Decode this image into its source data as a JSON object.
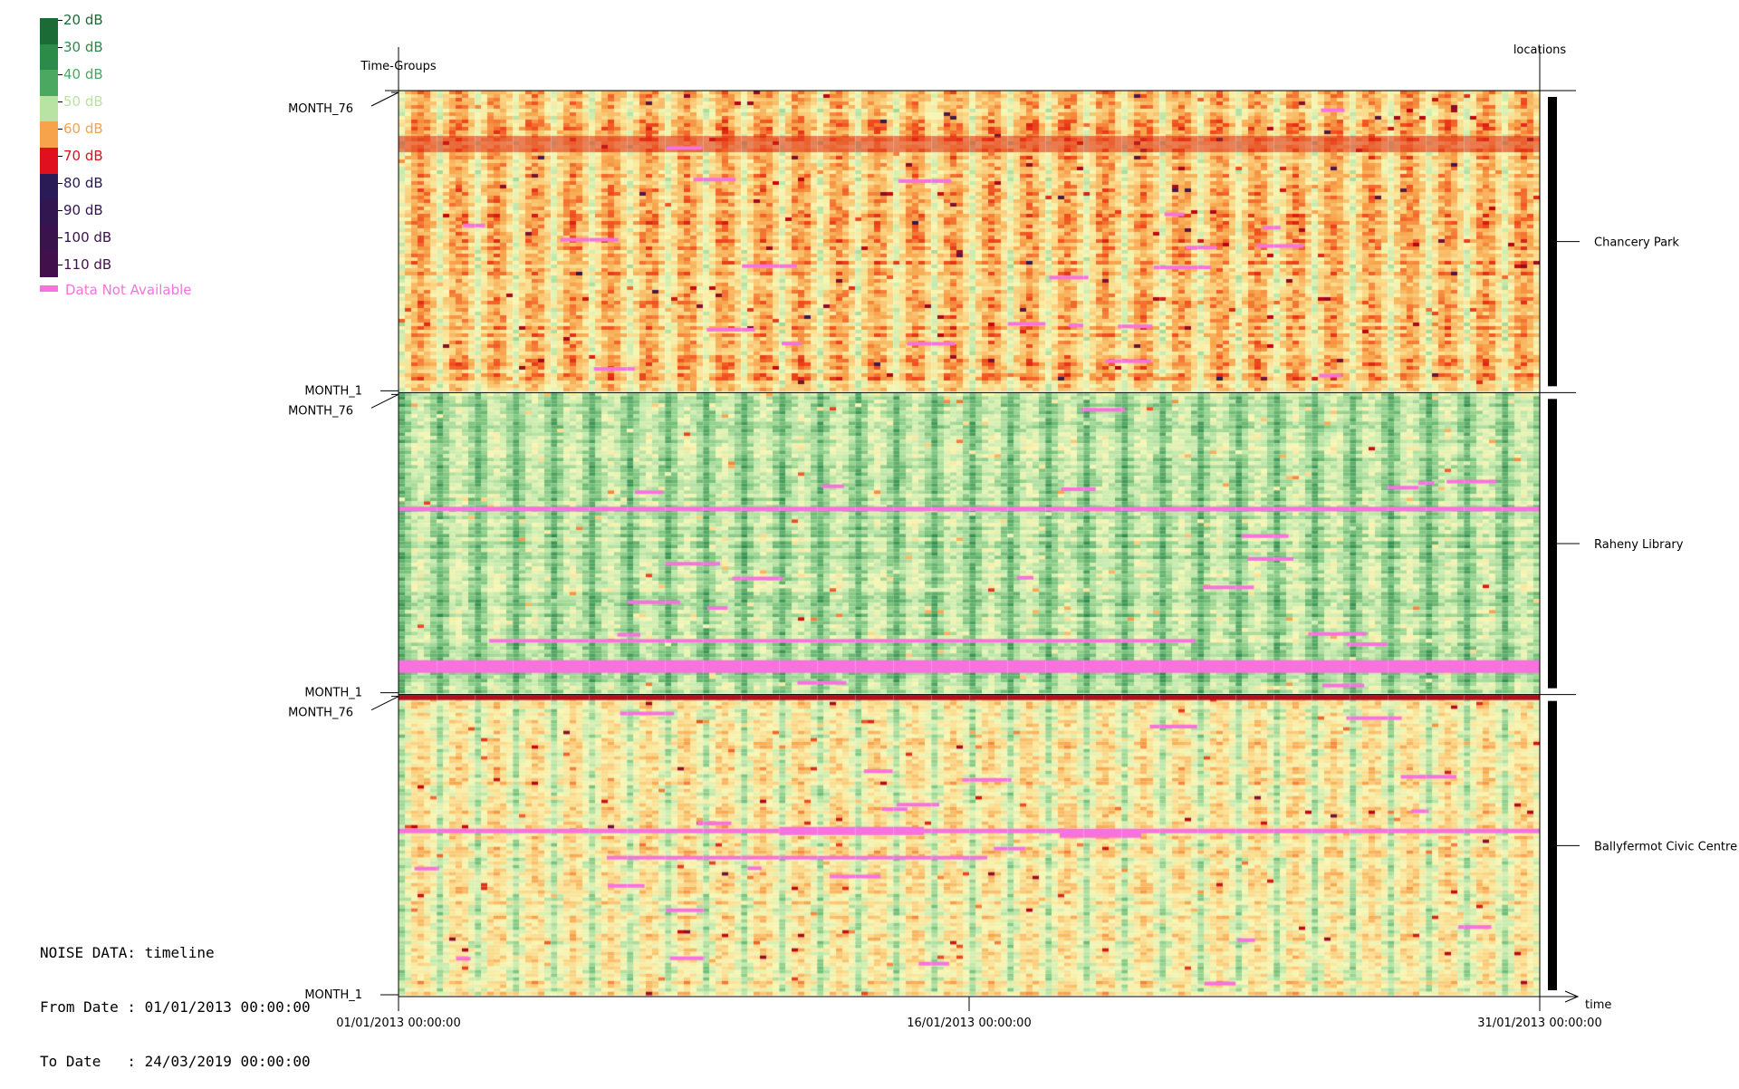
{
  "colors": {
    "na": "#f772de",
    "scale_stops": [
      "#2f1b52",
      "#42134a",
      "#c8050d",
      "#f04a1d",
      "#f7a34b",
      "#fbd888",
      "#f8f6b4",
      "#c9ecb0",
      "#7cc57e",
      "#2d8b4a",
      "#1a6b35"
    ]
  },
  "legend": {
    "items": [
      {
        "label": "20 dB",
        "color": "#1a6b35"
      },
      {
        "label": "30 dB",
        "color": "#2d8b4a"
      },
      {
        "label": "40 dB",
        "color": "#4aa860"
      },
      {
        "label": "50 dB",
        "color": "#b9e3a2"
      },
      {
        "label": "60 dB",
        "color": "#f7a34b"
      },
      {
        "label": "70 dB",
        "color": "#e0101e"
      },
      {
        "label": "80 dB",
        "color": "#2a1a55"
      },
      {
        "label": "90 dB",
        "color": "#321650"
      },
      {
        "label": "100 dB",
        "color": "#3a124c"
      },
      {
        "label": "110 dB",
        "color": "#42104a"
      }
    ],
    "na_label": "Data Not Available"
  },
  "info": {
    "line1": "NOISE DATA: timeline",
    "line2": "From Date : 01/01/2013 00:00:00",
    "line3": "To Date   : 24/03/2019 00:00:00"
  },
  "chart_data": {
    "type": "heatmap",
    "title": "",
    "xlabel": "time",
    "ylabel": "Time-Groups",
    "y_right_label": "locations",
    "x_ticks": [
      "01/01/2013 00:00:00",
      "16/01/2013 00:00:00",
      "31/01/2013 00:00:00"
    ],
    "x_range": [
      "01/01/2013 00:00:00",
      "31/01/2013 00:00:00"
    ],
    "y_ticks_top": "MONTH_76",
    "y_ticks_bottom": "MONTH_1",
    "value_unit": "dB",
    "value_range": [
      20,
      110
    ],
    "locations": [
      {
        "name": "Chancery Park",
        "typical_db": 58
      },
      {
        "name": "Raheny Library",
        "typical_db": 45
      },
      {
        "name": "Ballyfermot Civic Centre",
        "typical_db": 53
      }
    ],
    "pattern": "daily cycle: louder daytime, quieter night; 30 day columns per month row",
    "grid": false
  }
}
